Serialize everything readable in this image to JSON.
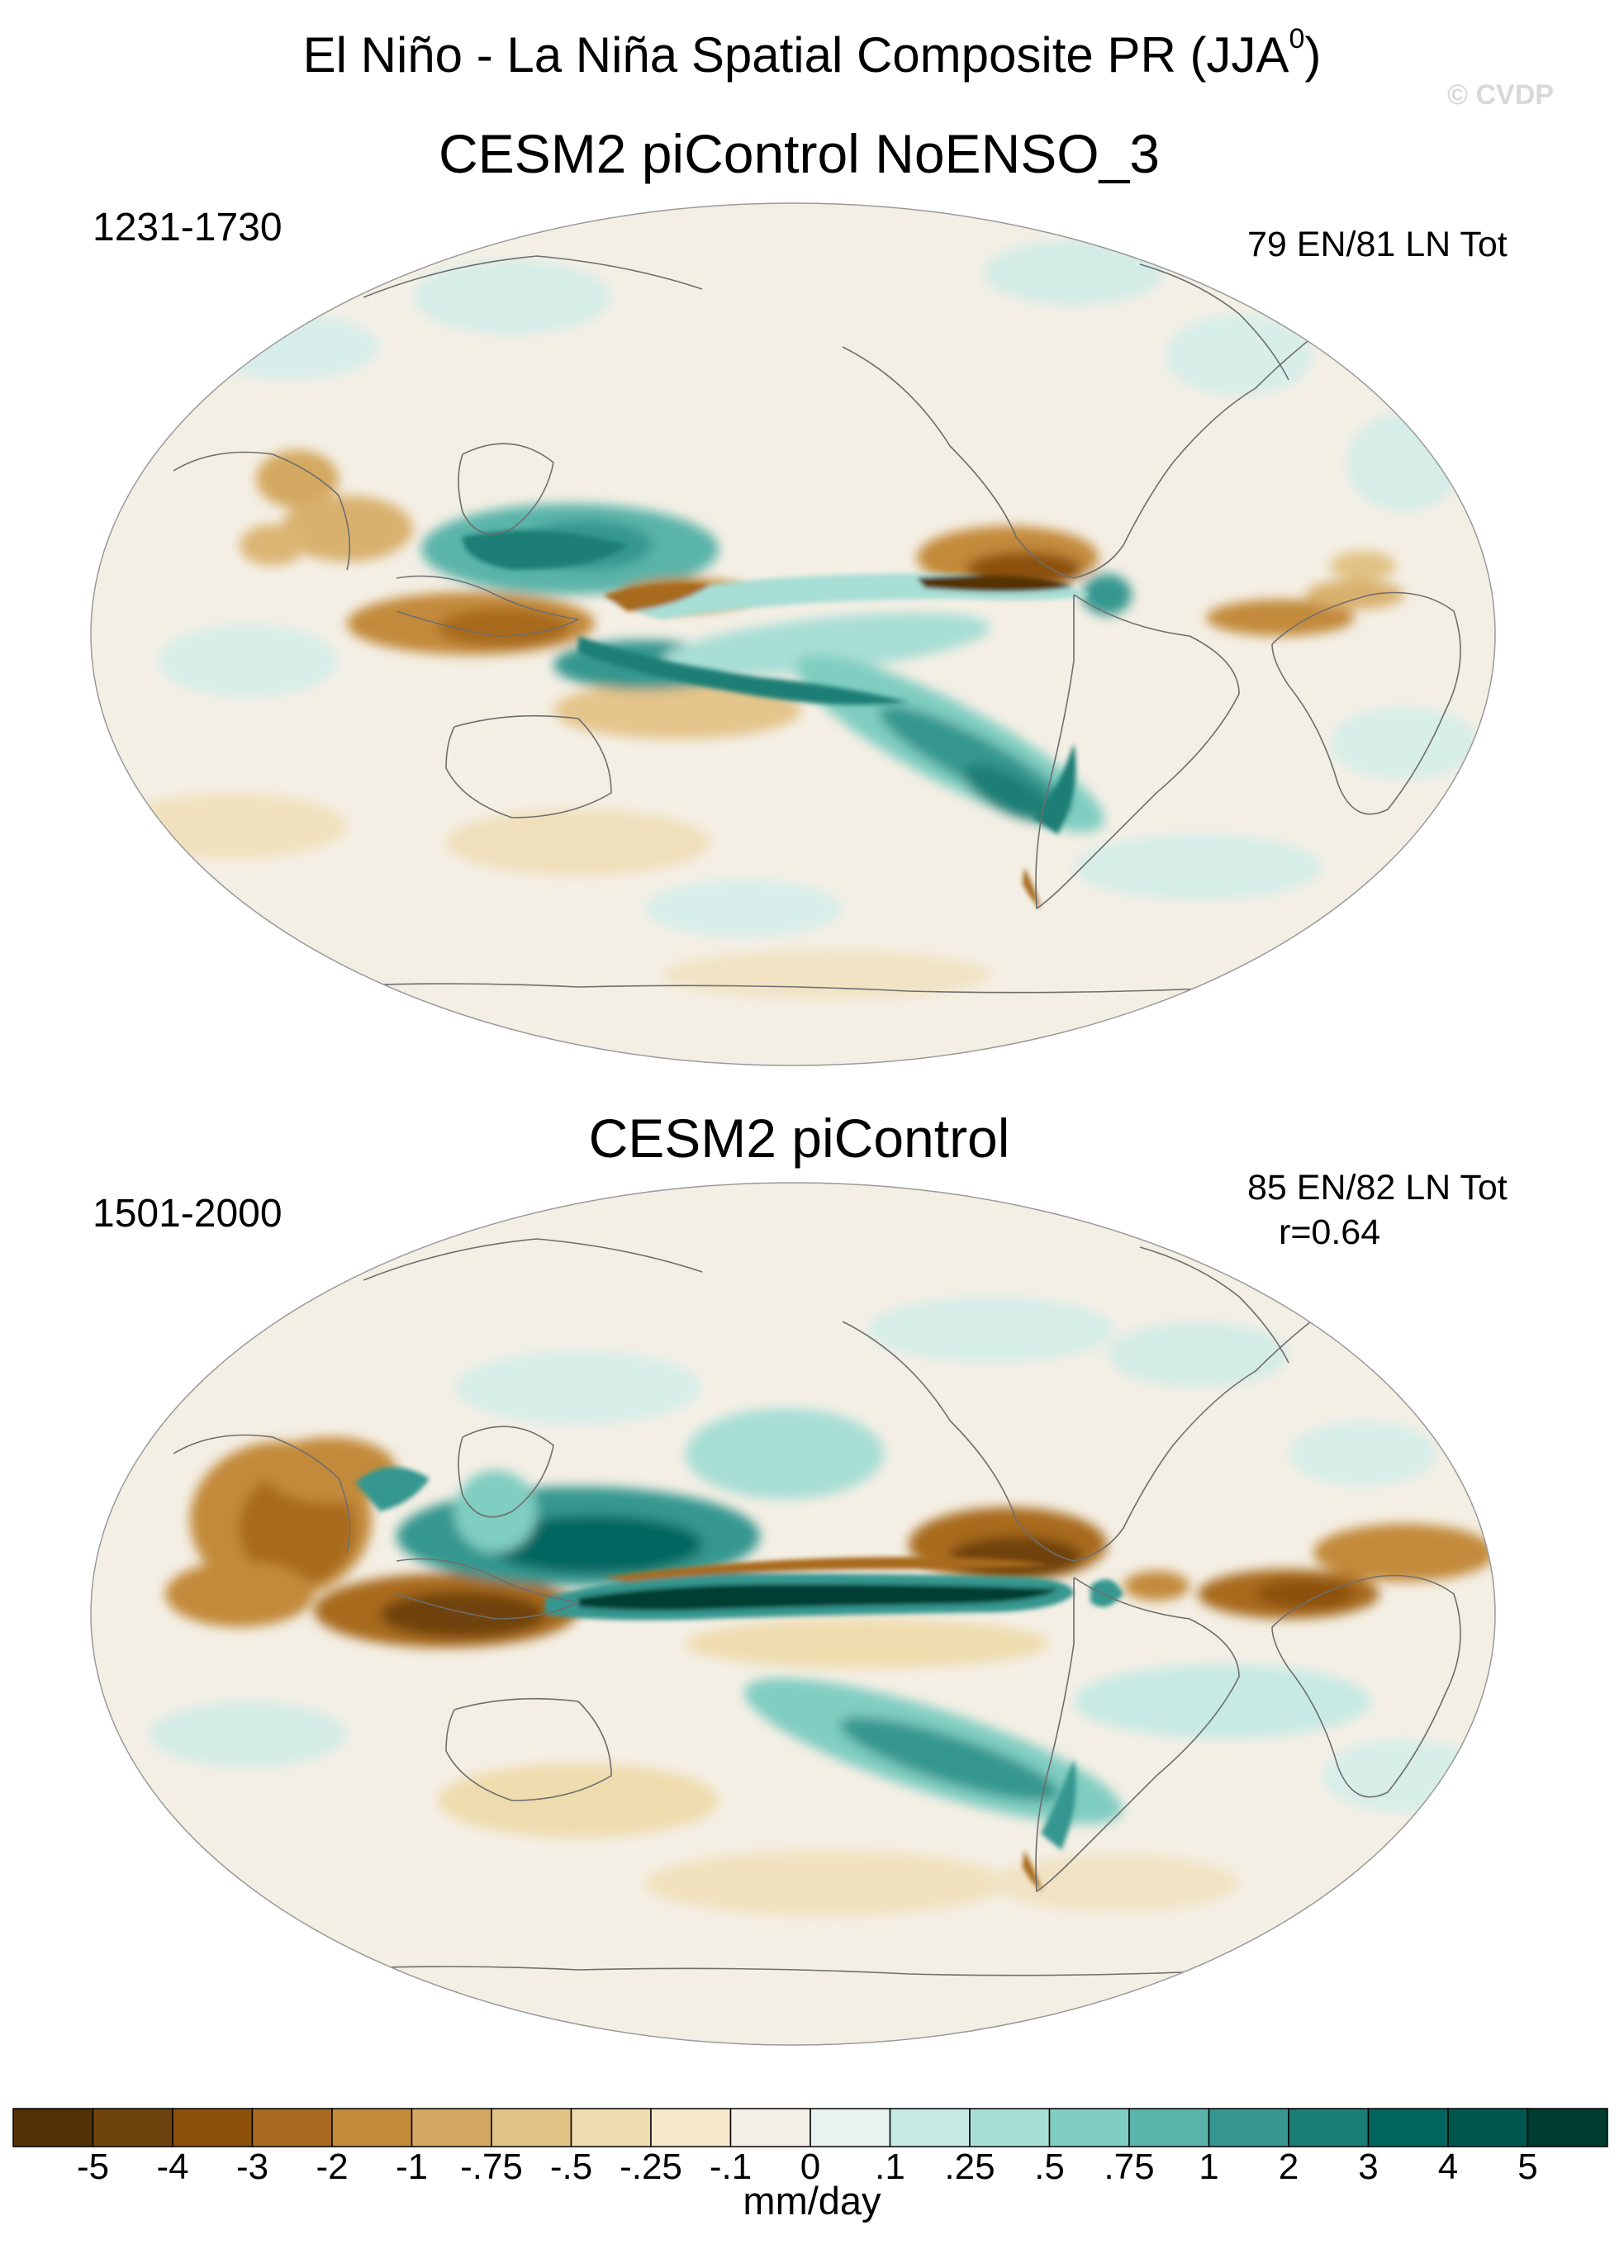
{
  "figure": {
    "title_main": "El Niño - La Niña Spatial Composite PR (JJA",
    "title_sup": "0",
    "title_close": ")",
    "credit": "© CVDP"
  },
  "panels": [
    {
      "title": "CESM2 piControl NoENSO_3",
      "years": "1231-1730",
      "counts": "79 EN/81 LN Tot",
      "pattern_correlation": ""
    },
    {
      "title": "CESM2 piControl",
      "years": "1501-2000",
      "counts": "85 EN/82 LN Tot",
      "pattern_correlation": "r=0.64"
    }
  ],
  "colorbar": {
    "units": "mm/day",
    "labels": [
      "-5",
      "-4",
      "-3",
      "-2",
      "-1",
      "-.75",
      "-.5",
      "-.25",
      "-.1",
      "0",
      ".1",
      ".25",
      ".5",
      ".75",
      "1",
      "2",
      "3",
      "4",
      "5"
    ],
    "colors": [
      "#543005",
      "#6f430d",
      "#8c510a",
      "#a86a1f",
      "#c38a3a",
      "#d4a860",
      "#e1c385",
      "#efdcae",
      "#f4e8c8",
      "#f5f0e7",
      "#e6f3f0",
      "#c7eae4",
      "#a7ded5",
      "#80cdc1",
      "#5ab4a9",
      "#35978f",
      "#1a7e75",
      "#01665e",
      "#01574e",
      "#003c30"
    ]
  }
}
